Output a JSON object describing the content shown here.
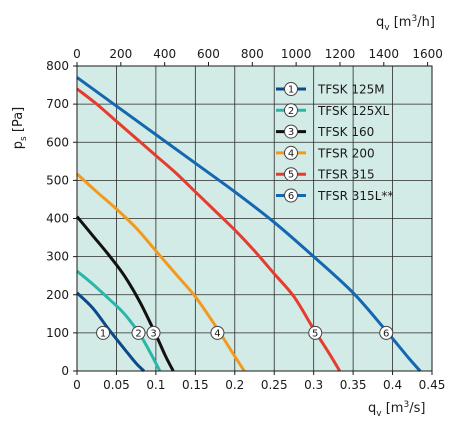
{
  "chart_data": {
    "type": "line",
    "xlabel": "q_v [m³/s]",
    "x2label": "q_v [m³/h]",
    "ylabel": "p_s [Pa]",
    "xlim": [
      0,
      0.45
    ],
    "x2lim": [
      0,
      1620
    ],
    "ylim": [
      0,
      800
    ],
    "xticks": [
      "0",
      "0.05",
      "0.1",
      "0.15",
      "0.2",
      "0.25",
      "0.3",
      "0.35",
      "0.4",
      "0.45"
    ],
    "x2ticks": [
      "0",
      "200",
      "400",
      "600",
      "800",
      "1000",
      "1200",
      "1400",
      "1600"
    ],
    "yticks": [
      "0",
      "100",
      "200",
      "300",
      "400",
      "500",
      "600",
      "700",
      "800"
    ],
    "grid": true,
    "background": "#d2ebe6",
    "legend_position": "top-right",
    "series": [
      {
        "marker": "1",
        "name": "TFSK 125M",
        "color": "#0a4a8a",
        "label_x": 0.033,
        "x": [
          0,
          0.02,
          0.04,
          0.06,
          0.075,
          0.085
        ],
        "y": [
          205,
          165,
          110,
          58,
          20,
          0
        ]
      },
      {
        "marker": "2",
        "name": "TFSK 125XL",
        "color": "#2ab7a9",
        "label_x": 0.078,
        "x": [
          0,
          0.02,
          0.04,
          0.06,
          0.08,
          0.095,
          0.105
        ],
        "y": [
          262,
          228,
          190,
          150,
          95,
          40,
          0
        ]
      },
      {
        "marker": "3",
        "name": "TFSK 160",
        "color": "#111111",
        "label_x": 0.097,
        "x": [
          0,
          0.02,
          0.04,
          0.06,
          0.08,
          0.1,
          0.112,
          0.122
        ],
        "y": [
          405,
          355,
          305,
          250,
          180,
          95,
          40,
          0
        ]
      },
      {
        "marker": "4",
        "name": "TFSR 200",
        "color": "#f39a1e",
        "label_x": 0.178,
        "x": [
          0,
          0.025,
          0.05,
          0.075,
          0.1,
          0.125,
          0.15,
          0.175,
          0.195,
          0.212
        ],
        "y": [
          517,
          470,
          425,
          375,
          315,
          255,
          195,
          120,
          55,
          0
        ]
      },
      {
        "marker": "5",
        "name": "TFSR 315",
        "color": "#e63c2e",
        "label_x": 0.302,
        "x": [
          0,
          0.025,
          0.05,
          0.075,
          0.1,
          0.125,
          0.15,
          0.175,
          0.2,
          0.225,
          0.25,
          0.275,
          0.3,
          0.32,
          0.333
        ],
        "y": [
          740,
          700,
          655,
          610,
          565,
          520,
          470,
          420,
          370,
          315,
          255,
          195,
          110,
          45,
          0
        ]
      },
      {
        "marker": "6",
        "name": "TFSR 315L**",
        "color": "#1467b0",
        "label_x": 0.392,
        "x": [
          0,
          0.05,
          0.1,
          0.15,
          0.2,
          0.25,
          0.3,
          0.35,
          0.39,
          0.42,
          0.435
        ],
        "y": [
          770,
          695,
          620,
          545,
          470,
          390,
          300,
          205,
          110,
          35,
          0
        ]
      }
    ]
  }
}
